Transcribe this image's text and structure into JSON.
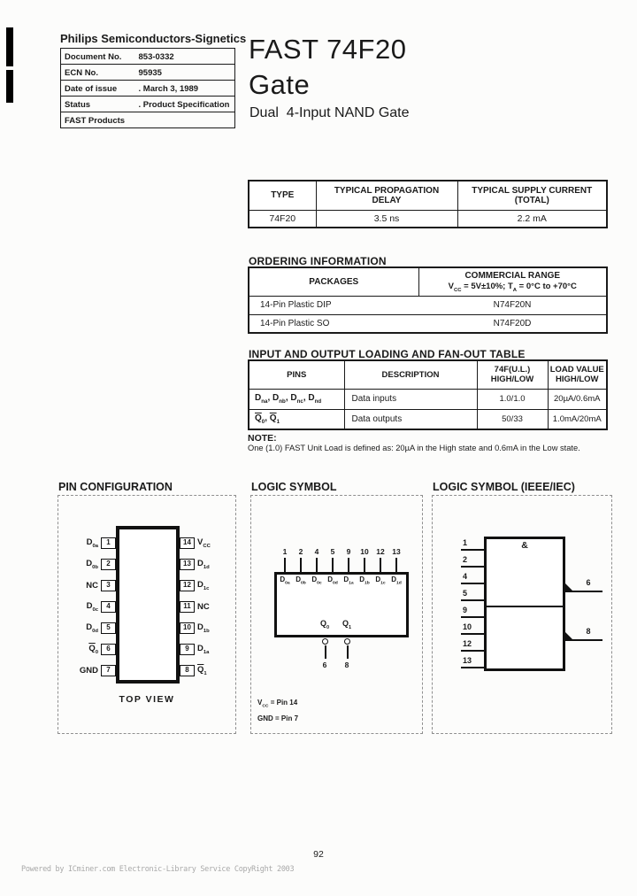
{
  "colors": {
    "ink": "#1a1a1a",
    "paper": "#fcfcfb"
  },
  "header": {
    "brand": "Philips Semiconductors-Signetics",
    "info_rows": [
      {
        "label": "Document No.",
        "value": "853-0332"
      },
      {
        "label": "ECN No.",
        "value": "95935"
      },
      {
        "label": "Date of issue",
        "value": ". March 3, 1989"
      },
      {
        "label": "Status",
        "value": ". Product Specification"
      },
      {
        "label": "FAST Products",
        "value": ""
      }
    ],
    "title_line1": "FAST 74F20",
    "title_line2": "Gate",
    "subtitle": "Dual  4-Input NAND Gate"
  },
  "type_table": {
    "headers": [
      "TYPE",
      "TYPICAL PROPAGATION\nDELAY",
      "TYPICAL SUPPLY CURRENT\n(TOTAL)"
    ],
    "row": {
      "type": "74F20",
      "delay": "3.5 ns",
      "supply": "2.2 mA"
    }
  },
  "ordering": {
    "heading": "ORDERING INFORMATION",
    "col_packages": "PACKAGES",
    "commercial_line1": "COMMERCIAL RANGE",
    "commercial_line2": [
      {
        "t": "V"
      },
      {
        "s": "CC"
      },
      {
        "t": " = 5V±10%; T"
      },
      {
        "s": "A"
      },
      {
        "t": " = 0°C to +70°C"
      }
    ],
    "rows": [
      {
        "package": "14-Pin Plastic DIP",
        "part": "N74F20N"
      },
      {
        "package": "14-Pin Plastic SO",
        "part": "N74F20D"
      }
    ]
  },
  "loading": {
    "heading": "INPUT AND OUTPUT LOADING AND FAN-OUT TABLE",
    "headers": {
      "pins": "PINS",
      "description": "DESCRIPTION",
      "ul": "74F(U.L.)\nHIGH/LOW",
      "load": "LOAD VALUE\nHIGH/LOW"
    },
    "rows": [
      {
        "pins": [
          {
            "t": "D"
          },
          {
            "s": "na"
          },
          {
            "t": ", D"
          },
          {
            "s": "nb"
          },
          {
            "t": ", D"
          },
          {
            "s": "nc"
          },
          {
            "t": ", D"
          },
          {
            "s": "nd"
          }
        ],
        "description": "Data inputs",
        "ul": "1.0/1.0",
        "load": "20µA/0.6mA"
      },
      {
        "pins": [
          {
            "o": "Q"
          },
          {
            "s": "0"
          },
          {
            "t": ", "
          },
          {
            "o": "Q"
          },
          {
            "s": "1"
          }
        ],
        "description": "Data outputs",
        "ul": "50/33",
        "load": "1.0mA/20mA"
      }
    ],
    "note_label": "NOTE:",
    "note": "One (1.0) FAST Unit Load is defined as: 20µA in the High state and 0.6mA in the Low state."
  },
  "pin_config": {
    "heading": "PIN CONFIGURATION",
    "caption": "TOP VIEW",
    "left_pins": [
      {
        "num": "1",
        "label": [
          {
            "t": "D"
          },
          {
            "s": "0a"
          }
        ]
      },
      {
        "num": "2",
        "label": [
          {
            "t": "D"
          },
          {
            "s": "0b"
          }
        ]
      },
      {
        "num": "3",
        "label": [
          {
            "t": "NC"
          }
        ]
      },
      {
        "num": "4",
        "label": [
          {
            "t": "D"
          },
          {
            "s": "0c"
          }
        ]
      },
      {
        "num": "5",
        "label": [
          {
            "t": "D"
          },
          {
            "s": "0d"
          }
        ]
      },
      {
        "num": "6",
        "label": [
          {
            "o": "Q"
          },
          {
            "s": "0"
          }
        ]
      },
      {
        "num": "7",
        "label": [
          {
            "t": "GND"
          }
        ]
      }
    ],
    "right_pins": [
      {
        "num": "14",
        "label": [
          {
            "t": "V"
          },
          {
            "s": "CC"
          }
        ]
      },
      {
        "num": "13",
        "label": [
          {
            "t": "D"
          },
          {
            "s": "1d"
          }
        ]
      },
      {
        "num": "12",
        "label": [
          {
            "t": "D"
          },
          {
            "s": "1c"
          }
        ]
      },
      {
        "num": "11",
        "label": [
          {
            "t": "NC"
          }
        ]
      },
      {
        "num": "10",
        "label": [
          {
            "t": "D"
          },
          {
            "s": "1b"
          }
        ]
      },
      {
        "num": "9",
        "label": [
          {
            "t": "D"
          },
          {
            "s": "1a"
          }
        ]
      },
      {
        "num": "8",
        "label": [
          {
            "o": "Q"
          },
          {
            "s": "1"
          }
        ]
      }
    ]
  },
  "logic_symbol": {
    "heading": "LOGIC SYMBOL",
    "top_pins": [
      {
        "num": "1",
        "label": [
          {
            "t": "D"
          },
          {
            "s": "0a"
          }
        ]
      },
      {
        "num": "2",
        "label": [
          {
            "t": "D"
          },
          {
            "s": "0b"
          }
        ]
      },
      {
        "num": "4",
        "label": [
          {
            "t": "D"
          },
          {
            "s": "0c"
          }
        ]
      },
      {
        "num": "5",
        "label": [
          {
            "t": "D"
          },
          {
            "s": "0d"
          }
        ]
      },
      {
        "num": "9",
        "label": [
          {
            "t": "D"
          },
          {
            "s": "1a"
          }
        ]
      },
      {
        "num": "10",
        "label": [
          {
            "t": "D"
          },
          {
            "s": "1b"
          }
        ]
      },
      {
        "num": "12",
        "label": [
          {
            "t": "D"
          },
          {
            "s": "1c"
          }
        ]
      },
      {
        "num": "13",
        "label": [
          {
            "t": "D"
          },
          {
            "s": "1d"
          }
        ]
      }
    ],
    "outputs": [
      {
        "label": [
          {
            "t": "Q"
          },
          {
            "s": "0"
          }
        ],
        "num": "6"
      },
      {
        "label": [
          {
            "t": "Q"
          },
          {
            "s": "1"
          }
        ],
        "num": "8"
      }
    ],
    "vcc_note": [
      {
        "t": "V"
      },
      {
        "s": "CC"
      },
      {
        "t": " = Pin 14"
      }
    ],
    "gnd_note": "GND = Pin 7"
  },
  "ieee": {
    "heading": "LOGIC SYMBOL (IEEE/IEC)",
    "and_label": "&",
    "inputs": [
      "1",
      "2",
      "4",
      "5",
      "9",
      "10",
      "12",
      "13"
    ],
    "upper_output": "6",
    "lower_output": "8"
  },
  "page": {
    "number": "92",
    "footer": "Powered by ICminer.com Electronic-Library Service CopyRight 2003"
  }
}
